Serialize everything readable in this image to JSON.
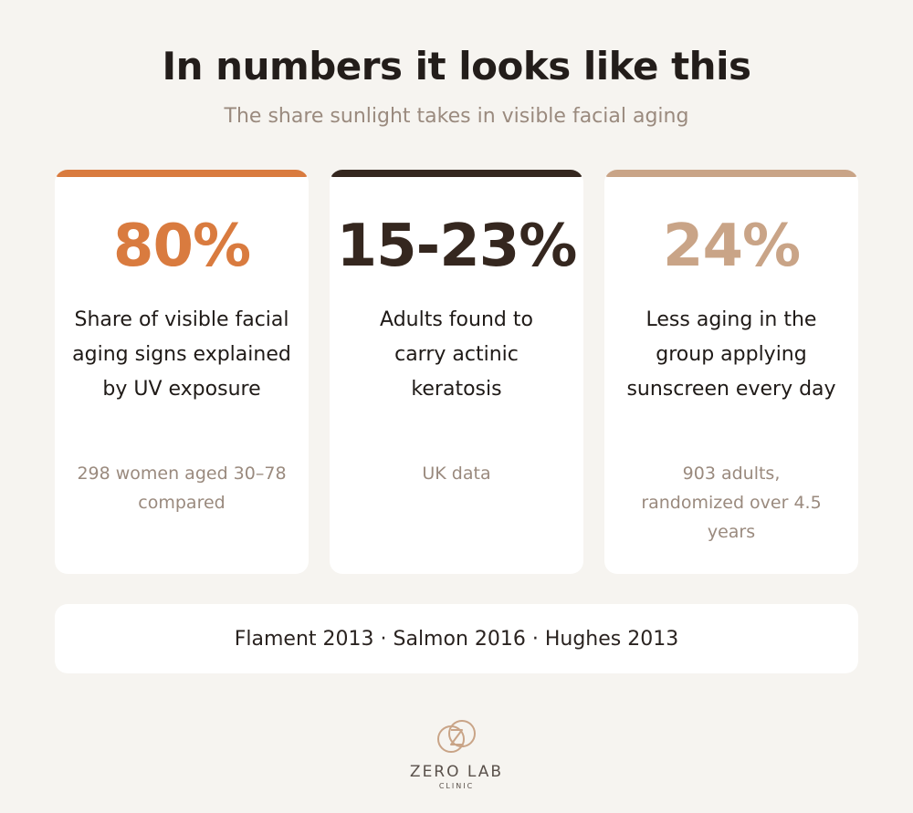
{
  "header": {
    "title": "In numbers it looks like this",
    "subtitle": "The share sunlight takes in visible facial aging"
  },
  "cards": [
    {
      "stat": "80%",
      "description": "Share of visible facial aging signs explained by UV exposure",
      "note": "298 women aged 30–78 compared",
      "accent_color": "#d97b3f"
    },
    {
      "stat": "15-23%",
      "description": "Adults found to carry actinic keratosis",
      "note": "UK data",
      "accent_color": "#35271f"
    },
    {
      "stat": "24%",
      "description": "Less aging in the group applying sunscreen every day",
      "note": "903 adults, randomized over 4.5 years",
      "accent_color": "#c9a487"
    }
  ],
  "sources": "Flament 2013 · Salmon 2016 · Hughes 2013",
  "logo": {
    "name": "ZERO LAB",
    "tagline": "CLINIC",
    "icon": "zero-lab-logo-icon",
    "color": "#c9a487"
  }
}
